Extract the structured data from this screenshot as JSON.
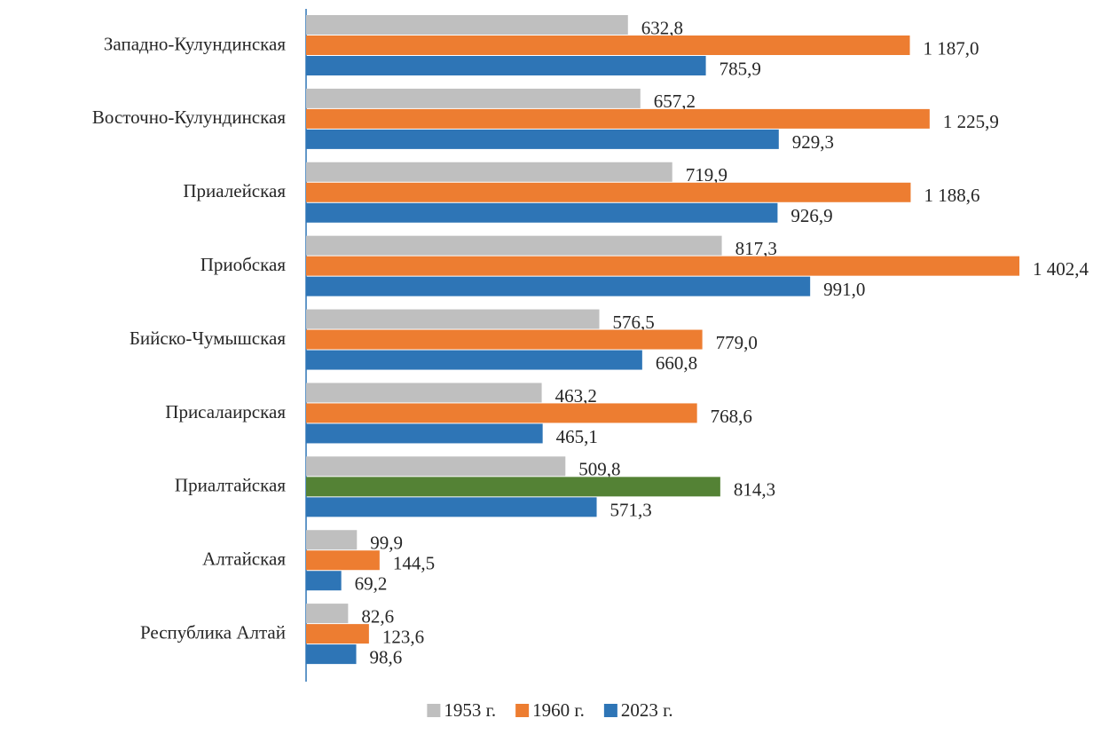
{
  "chart_data": {
    "type": "bar",
    "orientation": "horizontal",
    "categories": [
      "Западно-Кулундинская",
      "Восточно-Кулундинская",
      "Приалейская",
      "Приобская",
      "Бийско-Чумышская",
      "Присалаирская",
      "Приалтайская",
      "Алтайская",
      "Республика Алтай"
    ],
    "series": [
      {
        "name": "1953 г.",
        "color": "#bfbfbf",
        "values": [
          632.8,
          657.2,
          719.9,
          817.3,
          576.5,
          463.2,
          509.8,
          99.9,
          82.6
        ],
        "value_labels": [
          "632,8",
          "657,2",
          "719,9",
          "817,3",
          "576,5",
          "463,2",
          "509,8",
          "99,9",
          "82,6"
        ]
      },
      {
        "name": "1960 г.",
        "color": "#ed7d31",
        "colors": [
          "#ed7d31",
          "#ed7d31",
          "#ed7d31",
          "#ed7d31",
          "#ed7d31",
          "#ed7d31",
          "#548235",
          "#ed7d31",
          "#ed7d31"
        ],
        "values": [
          1187.0,
          1225.9,
          1188.6,
          1402.4,
          779.0,
          768.6,
          814.3,
          144.5,
          123.6
        ],
        "value_labels": [
          "1 187,0",
          "1 225,9",
          "1 188,6",
          "1 402,4",
          "779,0",
          "768,6",
          "814,3",
          "144,5",
          "123,6"
        ]
      },
      {
        "name": "2023 г.",
        "color": "#2e75b6",
        "values": [
          785.9,
          929.3,
          926.9,
          991.0,
          660.8,
          465.1,
          571.3,
          69.2,
          98.6
        ],
        "value_labels": [
          "785,9",
          "929,3",
          "926,9",
          "991,0",
          "660,8",
          "465,1",
          "571,3",
          "69,2",
          "98,6"
        ]
      }
    ],
    "xlim": [
      0,
      1500
    ],
    "legend": "bottom"
  }
}
